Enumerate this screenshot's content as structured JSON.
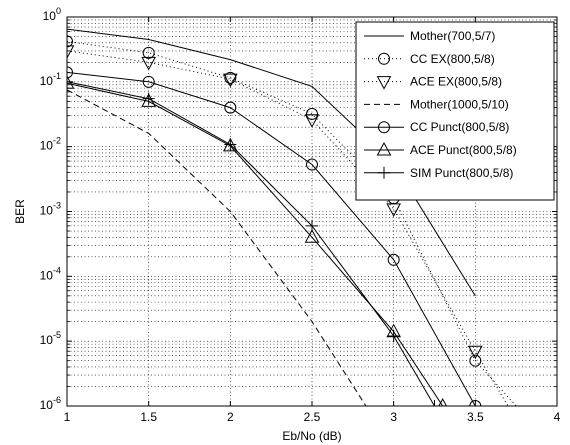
{
  "chart_data": {
    "type": "line",
    "title": "",
    "xlabel": "Eb/No (dB)",
    "ylabel": "BER",
    "xlim": [
      1,
      4
    ],
    "ylim_log10": [
      -6,
      0
    ],
    "yscale": "log",
    "grid": true,
    "legend_position": "top-right",
    "x_ticks": [
      "1",
      "1.5",
      "2",
      "2.5",
      "3",
      "3.5",
      "4"
    ],
    "y_ticks": [
      {
        "base": "10",
        "exp": "0"
      },
      {
        "base": "10",
        "exp": "-1"
      },
      {
        "base": "10",
        "exp": "-2"
      },
      {
        "base": "10",
        "exp": "-3"
      },
      {
        "base": "10",
        "exp": "-4"
      },
      {
        "base": "10",
        "exp": "-5"
      },
      {
        "base": "10",
        "exp": "-6"
      }
    ],
    "series": [
      {
        "name": "Mother(700,5/7)",
        "line": "solid",
        "marker": "none",
        "x": [
          1,
          1.5,
          2,
          2.5,
          3,
          3.5
        ],
        "y": [
          0.65,
          0.45,
          0.22,
          0.085,
          0.0055,
          5e-05
        ]
      },
      {
        "name": "CC EX(800,5/8)",
        "line": "dotted",
        "marker": "circle",
        "x": [
          1,
          1.5,
          2,
          2.5,
          3,
          3.5,
          3.75
        ],
        "y": [
          0.42,
          0.28,
          0.115,
          0.032,
          0.0016,
          5e-06,
          1e-06
        ]
      },
      {
        "name": "ACE EX(800,5/8)",
        "line": "dotted",
        "marker": "triangle-down",
        "x": [
          1,
          1.5,
          2,
          2.5,
          3,
          3.5,
          3.7
        ],
        "y": [
          0.3,
          0.2,
          0.11,
          0.026,
          0.0011,
          7e-06,
          1e-06
        ]
      },
      {
        "name": "Mother(1000,5/10)",
        "line": "dashed",
        "marker": "none",
        "x": [
          1,
          1.5,
          2,
          2.5,
          2.83
        ],
        "y": [
          0.075,
          0.016,
          0.001,
          2e-05,
          1e-06
        ]
      },
      {
        "name": "CC Punct(800,5/8)",
        "line": "solid",
        "marker": "circle",
        "x": [
          1,
          1.5,
          2,
          2.5,
          3,
          3.5
        ],
        "y": [
          0.14,
          0.1,
          0.04,
          0.0053,
          0.00018,
          1e-06
        ]
      },
      {
        "name": "ACE Punct(800,5/8)",
        "line": "solid",
        "marker": "triangle-up",
        "x": [
          1,
          1.5,
          2,
          2.5,
          3,
          3.3
        ],
        "y": [
          0.095,
          0.05,
          0.0103,
          0.0004,
          1.4e-05,
          1e-06
        ]
      },
      {
        "name": "SIM Punct(800,5/8)",
        "line": "solid",
        "marker": "plus",
        "x": [
          1,
          1.5,
          2,
          2.5,
          3,
          3.25
        ],
        "y": [
          0.1,
          0.055,
          0.0108,
          0.0006,
          1.2e-05,
          1e-06
        ]
      }
    ]
  }
}
